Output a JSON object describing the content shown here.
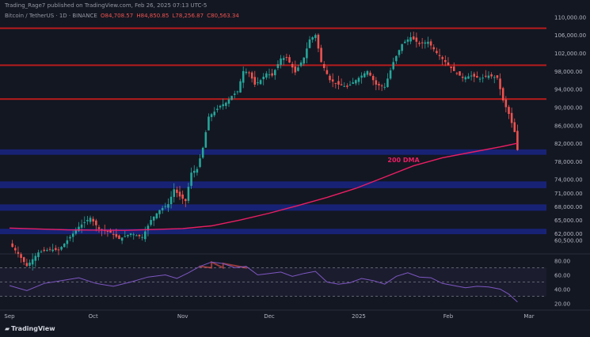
{
  "header": {
    "author_line": "Trading_Rage7 published on TradingView.com, Feb 26, 2025 07:13 UTC-5",
    "symbol": "Bitcoin / TetherUS · 1D · BINANCE",
    "ohlc": {
      "o": "O84,708.57",
      "h": "H84,850.85",
      "l": "L78,256.87",
      "c": "C80,563.34"
    }
  },
  "brand": {
    "name": "TradingView",
    "logo": "tradingview-logo-icon"
  },
  "colors": {
    "background": "#131722",
    "up": "#26a69a",
    "down": "#ef5350",
    "dma": "#e91e63",
    "resistance": "#b71c1c",
    "support": "#1a237e",
    "rsi": "#7e57c2",
    "axis_text": "#b2b5be"
  },
  "chart_data": [
    {
      "type": "candlestick",
      "symbol": "Bitcoin / TetherUS",
      "interval": "1D",
      "ylim": [
        58000,
        112000
      ],
      "yticks": [
        {
          "v": 110000,
          "label": "110,000.00"
        },
        {
          "v": 106000,
          "label": "106,000.00"
        },
        {
          "v": 102000,
          "label": "102,000.00"
        },
        {
          "v": 98000,
          "label": "98,000.00"
        },
        {
          "v": 94000,
          "label": "94,000.00"
        },
        {
          "v": 90000,
          "label": "90,000.00"
        },
        {
          "v": 86000,
          "label": "86,000.00"
        },
        {
          "v": 82000,
          "label": "82,000.00"
        },
        {
          "v": 78000,
          "label": "78,000.00"
        },
        {
          "v": 74000,
          "label": "74,000.00"
        },
        {
          "v": 71000,
          "label": "71,000.00"
        },
        {
          "v": 68000,
          "label": "68,000.00"
        },
        {
          "v": 65000,
          "label": "65,000.00"
        },
        {
          "v": 62000,
          "label": "62,000.00"
        },
        {
          "v": 60500,
          "label": "60,500.00"
        }
      ],
      "x_labels": [
        {
          "d": 0,
          "label": "Sep"
        },
        {
          "d": 29,
          "label": "Oct"
        },
        {
          "d": 60,
          "label": "Nov"
        },
        {
          "d": 90,
          "label": "Dec"
        },
        {
          "d": 121,
          "label": "2025"
        },
        {
          "d": 152,
          "label": "Feb"
        },
        {
          "d": 180,
          "label": "Mar"
        }
      ],
      "resistance_levels": [
        107500,
        99300,
        91800
      ],
      "support_zones": [
        {
          "low": 79800,
          "high": 80300
        },
        {
          "low": 72400,
          "high": 73200
        },
        {
          "low": 67400,
          "high": 68100
        },
        {
          "low": 62200,
          "high": 62700
        }
      ],
      "annotations": [
        {
          "text": "200 DMA",
          "x_day": 131,
          "y": 77800
        }
      ],
      "close_series": [
        {
          "d": 0,
          "v": 59800
        },
        {
          "d": 3,
          "v": 57500
        },
        {
          "d": 6,
          "v": 54800
        },
        {
          "d": 10,
          "v": 57800
        },
        {
          "d": 14,
          "v": 58500
        },
        {
          "d": 17,
          "v": 58300
        },
        {
          "d": 20,
          "v": 60500
        },
        {
          "d": 24,
          "v": 63500
        },
        {
          "d": 28,
          "v": 65500
        },
        {
          "d": 31,
          "v": 63000
        },
        {
          "d": 35,
          "v": 62200
        },
        {
          "d": 38,
          "v": 60800
        },
        {
          "d": 42,
          "v": 62000
        },
        {
          "d": 46,
          "v": 61200
        },
        {
          "d": 49,
          "v": 65000
        },
        {
          "d": 52,
          "v": 67200
        },
        {
          "d": 55,
          "v": 68500
        },
        {
          "d": 57,
          "v": 71800
        },
        {
          "d": 59,
          "v": 70200
        },
        {
          "d": 61,
          "v": 69200
        },
        {
          "d": 63,
          "v": 75500
        },
        {
          "d": 65,
          "v": 76300
        },
        {
          "d": 67,
          "v": 81000
        },
        {
          "d": 69,
          "v": 87900
        },
        {
          "d": 71,
          "v": 89000
        },
        {
          "d": 73,
          "v": 90300
        },
        {
          "d": 75,
          "v": 91000
        },
        {
          "d": 77,
          "v": 92500
        },
        {
          "d": 79,
          "v": 93500
        },
        {
          "d": 81,
          "v": 98000
        },
        {
          "d": 83,
          "v": 97700
        },
        {
          "d": 85,
          "v": 95000
        },
        {
          "d": 87,
          "v": 96000
        },
        {
          "d": 89,
          "v": 97500
        },
        {
          "d": 91,
          "v": 97000
        },
        {
          "d": 94,
          "v": 100800
        },
        {
          "d": 96,
          "v": 101000
        },
        {
          "d": 99,
          "v": 97700
        },
        {
          "d": 102,
          "v": 101000
        },
        {
          "d": 104,
          "v": 105000
        },
        {
          "d": 106,
          "v": 106000
        },
        {
          "d": 108,
          "v": 100000
        },
        {
          "d": 111,
          "v": 96000
        },
        {
          "d": 114,
          "v": 95000
        },
        {
          "d": 117,
          "v": 94500
        },
        {
          "d": 121,
          "v": 96500
        },
        {
          "d": 124,
          "v": 98000
        },
        {
          "d": 127,
          "v": 95000
        },
        {
          "d": 130,
          "v": 94500
        },
        {
          "d": 133,
          "v": 100000
        },
        {
          "d": 136,
          "v": 104000
        },
        {
          "d": 139,
          "v": 105500
        },
        {
          "d": 142,
          "v": 104000
        },
        {
          "d": 145,
          "v": 104500
        },
        {
          "d": 148,
          "v": 102000
        },
        {
          "d": 151,
          "v": 100000
        },
        {
          "d": 154,
          "v": 98000
        },
        {
          "d": 157,
          "v": 96500
        },
        {
          "d": 160,
          "v": 97000
        },
        {
          "d": 163,
          "v": 96300
        },
        {
          "d": 166,
          "v": 97000
        },
        {
          "d": 169,
          "v": 96500
        },
        {
          "d": 171,
          "v": 91500
        },
        {
          "d": 173,
          "v": 88500
        },
        {
          "d": 175,
          "v": 84500
        },
        {
          "d": 176,
          "v": 80500
        }
      ],
      "dma_200": {
        "label": "200 DMA",
        "points": [
          {
            "d": 0,
            "v": 63200
          },
          {
            "d": 20,
            "v": 62800
          },
          {
            "d": 40,
            "v": 62700
          },
          {
            "d": 60,
            "v": 63100
          },
          {
            "d": 70,
            "v": 63700
          },
          {
            "d": 80,
            "v": 65000
          },
          {
            "d": 90,
            "v": 66500
          },
          {
            "d": 100,
            "v": 68200
          },
          {
            "d": 110,
            "v": 70000
          },
          {
            "d": 120,
            "v": 72000
          },
          {
            "d": 130,
            "v": 74500
          },
          {
            "d": 140,
            "v": 77000
          },
          {
            "d": 150,
            "v": 78800
          },
          {
            "d": 160,
            "v": 80000
          },
          {
            "d": 170,
            "v": 81200
          },
          {
            "d": 176,
            "v": 82000
          }
        ]
      }
    },
    {
      "type": "line",
      "name": "RSI",
      "ylim": [
        15,
        85
      ],
      "yticks": [
        {
          "v": 80,
          "label": "80.00"
        },
        {
          "v": 60,
          "label": "60.00"
        },
        {
          "v": 40,
          "label": "40.00"
        },
        {
          "v": 20,
          "label": "20.00"
        }
      ],
      "levels": [
        70,
        50,
        30
      ],
      "points": [
        {
          "d": 0,
          "v": 45
        },
        {
          "d": 6,
          "v": 38
        },
        {
          "d": 12,
          "v": 48
        },
        {
          "d": 18,
          "v": 52
        },
        {
          "d": 24,
          "v": 56
        },
        {
          "d": 30,
          "v": 48
        },
        {
          "d": 36,
          "v": 44
        },
        {
          "d": 42,
          "v": 50
        },
        {
          "d": 48,
          "v": 57
        },
        {
          "d": 54,
          "v": 60
        },
        {
          "d": 58,
          "v": 55
        },
        {
          "d": 62,
          "v": 63
        },
        {
          "d": 66,
          "v": 72
        },
        {
          "d": 70,
          "v": 78
        },
        {
          "d": 74,
          "v": 76
        },
        {
          "d": 78,
          "v": 70
        },
        {
          "d": 82,
          "v": 72
        },
        {
          "d": 86,
          "v": 60
        },
        {
          "d": 90,
          "v": 62
        },
        {
          "d": 94,
          "v": 64
        },
        {
          "d": 98,
          "v": 58
        },
        {
          "d": 102,
          "v": 62
        },
        {
          "d": 106,
          "v": 65
        },
        {
          "d": 110,
          "v": 50
        },
        {
          "d": 114,
          "v": 47
        },
        {
          "d": 118,
          "v": 49
        },
        {
          "d": 122,
          "v": 55
        },
        {
          "d": 126,
          "v": 52
        },
        {
          "d": 130,
          "v": 47
        },
        {
          "d": 134,
          "v": 58
        },
        {
          "d": 138,
          "v": 63
        },
        {
          "d": 142,
          "v": 57
        },
        {
          "d": 146,
          "v": 56
        },
        {
          "d": 150,
          "v": 48
        },
        {
          "d": 154,
          "v": 45
        },
        {
          "d": 158,
          "v": 42
        },
        {
          "d": 162,
          "v": 44
        },
        {
          "d": 166,
          "v": 43
        },
        {
          "d": 170,
          "v": 40
        },
        {
          "d": 173,
          "v": 33
        },
        {
          "d": 176,
          "v": 22
        }
      ]
    }
  ]
}
